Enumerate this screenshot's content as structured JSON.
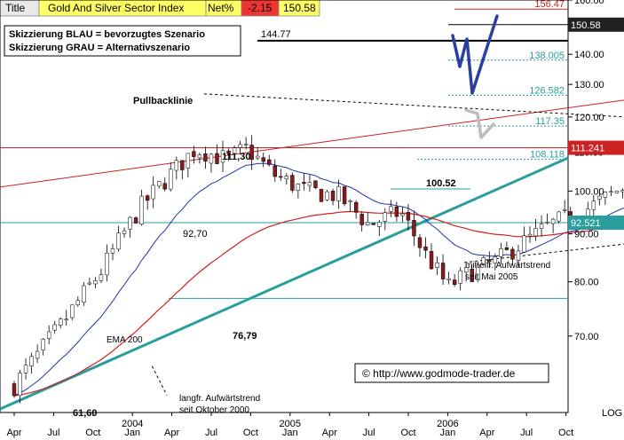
{
  "header": {
    "title_label": "Title",
    "title": "Gold And Silver Sector Index",
    "net_label": "Net%",
    "net_value": "-2.15",
    "last_value": "150.58"
  },
  "chart_data": {
    "type": "candlestick",
    "y_scale": "log",
    "ylim": [
      58,
      160
    ],
    "y_ticks": [
      {
        "value": 160,
        "label": "160.00"
      },
      {
        "value": 150,
        "label": "150.00"
      },
      {
        "value": 140,
        "label": "140.00"
      },
      {
        "value": 130,
        "label": "130.00"
      },
      {
        "value": 120,
        "label": "120.00"
      },
      {
        "value": 110,
        "label": "110.00"
      },
      {
        "value": 100,
        "label": "100.00"
      },
      {
        "value": 90,
        "label": "90.00"
      },
      {
        "value": 80,
        "label": "80.00"
      },
      {
        "value": 70,
        "label": "70.00"
      }
    ],
    "y_scale_label": "LOG",
    "x_ticks": [
      "Apr",
      "Jul",
      "Oct",
      "Jan",
      "Apr",
      "Jul",
      "Oct",
      "Jan",
      "Apr",
      "Jul",
      "Oct",
      "Jan",
      "Apr",
      "Jul",
      "Oct"
    ],
    "x_years": [
      {
        "label": "2004",
        "at_tick": 3
      },
      {
        "label": "2005",
        "at_tick": 7
      },
      {
        "label": "2006",
        "at_tick": 11
      }
    ],
    "price_path": [
      [
        0,
        62
      ],
      [
        0.5,
        66
      ],
      [
        1.2,
        72
      ],
      [
        2.2,
        82
      ],
      [
        3.2,
        96
      ],
      [
        4.6,
        111
      ],
      [
        5.4,
        108
      ],
      [
        5.9,
        111
      ],
      [
        6.6,
        104
      ],
      [
        7.4,
        100
      ],
      [
        8.2,
        99
      ],
      [
        9.0,
        92
      ],
      [
        9.8,
        95
      ],
      [
        10.4,
        86
      ],
      [
        11.0,
        79
      ],
      [
        11.6,
        82
      ],
      [
        12.2,
        84
      ],
      [
        12.9,
        88
      ],
      [
        13.6,
        92
      ],
      [
        14.6,
        96
      ],
      [
        15.8,
        103
      ],
      [
        16.6,
        108
      ],
      [
        17.4,
        111
      ],
      [
        17.8,
        104
      ],
      [
        18.2,
        100
      ],
      [
        18.9,
        97
      ],
      [
        19.6,
        95
      ],
      [
        20.4,
        93
      ],
      [
        21.4,
        104
      ],
      [
        22.2,
        98
      ],
      [
        22.8,
        91
      ],
      [
        23.4,
        86
      ],
      [
        23.9,
        79
      ],
      [
        24.5,
        84
      ],
      [
        25.2,
        88
      ],
      [
        26.0,
        90
      ],
      [
        26.8,
        93
      ],
      [
        27.8,
        104
      ],
      [
        28.6,
        111
      ],
      [
        29.3,
        107
      ],
      [
        30.0,
        116
      ],
      [
        30.8,
        128
      ],
      [
        31.6,
        142
      ],
      [
        32.2,
        153
      ]
    ],
    "series": [
      {
        "name": "EMA 200",
        "color": "#cc2222"
      },
      {
        "name": "",
        "color": "#2233aa"
      }
    ],
    "horizontal_levels": [
      {
        "value": 156.47,
        "label": "156.47",
        "color": "#cc2222"
      },
      {
        "value": 150.58,
        "label": "150.58",
        "color": "#000000",
        "boxed": true
      },
      {
        "value": 144.77,
        "label": "144.77",
        "color": "#000000"
      },
      {
        "value": 138.005,
        "label": "138.005",
        "color": "#2a9d9d"
      },
      {
        "value": 126.582,
        "label": "126.582",
        "color": "#2a9d9d"
      },
      {
        "value": 117.35,
        "label": "117.35",
        "color": "#2a9d9d"
      },
      {
        "value": 111.241,
        "label": "111.241",
        "color": "#cc2222",
        "boxed": true
      },
      {
        "value": 108.118,
        "label": "108.118",
        "color": "#2a9d9d"
      },
      {
        "value": 100.52,
        "label": "100.52",
        "color": "#2a9d9d"
      },
      {
        "value": 92.521,
        "label": "92.521",
        "color": "#2a9d9d",
        "boxed": true
      },
      {
        "value": 76.79,
        "label": "76,79",
        "color": "#2a9d9d"
      }
    ],
    "annotations": {
      "legend_blue": "Skizzierung BLAU = bevorzugtes Szenario",
      "legend_grey": "Skizzierung GRAU = Alternativszenario",
      "pullback": "Pullbacklinie",
      "high_2004": "111,30",
      "mid_2004": "92,70",
      "low_2004": "76,79",
      "low_2003": "61,60",
      "ema": "EMA 200",
      "mid_trend_1": "mittelfr. Aufwärtstrend",
      "mid_trend_2": "seit Mai 2005",
      "long_trend_1": "langfr. Aufwärtstrend",
      "long_trend_2": "seit Oktober 2000",
      "copyright": "© http://www.godmode-trader.de"
    },
    "colors": {
      "bull": "#ffffff",
      "bear": "#8b1a1a",
      "teal": "#2a9d9d",
      "red": "#cc2222",
      "blue_scenario": "#2a3f9f",
      "grey_scenario": "#bdbdbd",
      "header_yellow": "#ffff66",
      "header_red": "#ee3333"
    }
  }
}
